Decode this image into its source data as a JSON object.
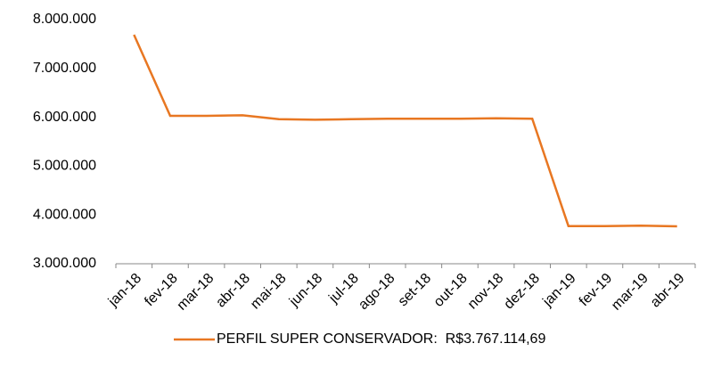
{
  "chart_data": {
    "type": "line",
    "categories": [
      "jan-18",
      "fev-18",
      "mar-18",
      "abr-18",
      "mai-18",
      "jun-18",
      "jul-18",
      "ago-18",
      "set-18",
      "out-18",
      "nov-18",
      "dez-18",
      "jan-19",
      "fev-19",
      "mar-19",
      "abr-19"
    ],
    "series": [
      {
        "name": "PERFIL SUPER CONSERVADOR:  R$3.767.114,69",
        "color": "#e87722",
        "values": [
          7690000,
          6030000,
          6030000,
          6040000,
          5960000,
          5950000,
          5960000,
          5970000,
          5970000,
          5970000,
          5980000,
          5970000,
          3770000,
          3770000,
          3780000,
          3767114.69
        ]
      }
    ],
    "ylim": [
      3000000,
      8000000
    ],
    "yticks": [
      {
        "value": 3000000,
        "label": "3.000.000"
      },
      {
        "value": 4000000,
        "label": "4.000.000"
      },
      {
        "value": 5000000,
        "label": "5.000.000"
      },
      {
        "value": 6000000,
        "label": "6.000.000"
      },
      {
        "value": 7000000,
        "label": "7.000.000"
      },
      {
        "value": 8000000,
        "label": "8.000.000"
      }
    ],
    "grid": false,
    "legend": "bottom"
  }
}
